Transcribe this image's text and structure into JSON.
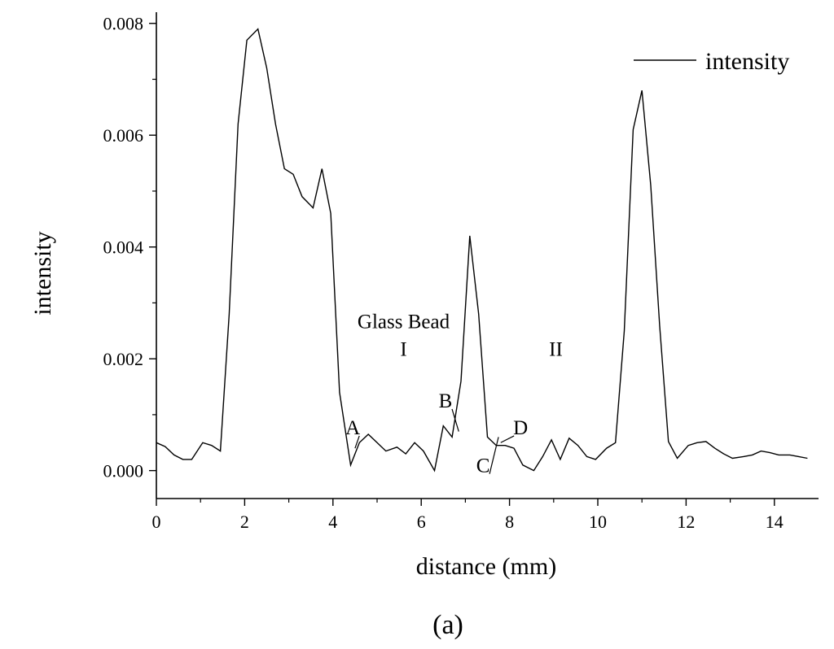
{
  "chart_data": {
    "type": "line",
    "caption": "(a)",
    "xlabel": "distance (mm)",
    "ylabel": "intensity",
    "xlim": [
      0,
      15
    ],
    "ylim": [
      -0.0005,
      0.0082
    ],
    "xticks": [
      0,
      2,
      4,
      6,
      8,
      10,
      12,
      14
    ],
    "xtick_labels": [
      "0",
      "2",
      "4",
      "6",
      "8",
      "10",
      "12",
      "14"
    ],
    "yticks": [
      0.0,
      0.002,
      0.004,
      0.006,
      0.008
    ],
    "ytick_labels": [
      "0.000",
      "0.002",
      "0.004",
      "0.006",
      "0.008"
    ],
    "grid": false,
    "legend_position": "top-right",
    "series": [
      {
        "name": "intensity",
        "color": "#000000",
        "x": [
          0,
          0.2,
          0.4,
          0.6,
          0.8,
          1.05,
          1.25,
          1.45,
          1.65,
          1.85,
          2.05,
          2.3,
          2.5,
          2.7,
          2.9,
          3.1,
          3.3,
          3.55,
          3.75,
          3.95,
          4.15,
          4.4,
          4.6,
          4.8,
          5.0,
          5.2,
          5.45,
          5.65,
          5.85,
          6.05,
          6.3,
          6.5,
          6.7,
          6.9,
          7.1,
          7.3,
          7.5,
          7.7,
          7.9,
          8.1,
          8.3,
          8.55,
          8.75,
          8.95,
          9.15,
          9.35,
          9.55,
          9.75,
          9.95,
          10.2,
          10.4,
          10.6,
          10.8,
          11.0,
          11.2,
          11.4,
          11.6,
          11.8,
          12.05,
          12.25,
          12.45,
          12.65,
          12.85,
          13.05,
          13.3,
          13.5,
          13.7,
          13.9,
          14.1,
          14.35,
          14.55,
          14.75
        ],
        "y": [
          0.0005,
          0.00043,
          0.00028,
          0.0002,
          0.0002,
          0.0005,
          0.00045,
          0.00035,
          0.0028,
          0.0062,
          0.0077,
          0.0079,
          0.0072,
          0.0062,
          0.0054,
          0.0053,
          0.0049,
          0.0047,
          0.0054,
          0.0046,
          0.0014,
          0.0001,
          0.0005,
          0.00065,
          0.0005,
          0.00035,
          0.00042,
          0.0003,
          0.0005,
          0.00035,
          0.0,
          0.0008,
          0.0006,
          0.0016,
          0.0042,
          0.0028,
          0.0006,
          0.00045,
          0.00045,
          0.0004,
          0.0001,
          0.0,
          0.00025,
          0.00055,
          0.0002,
          0.00058,
          0.00045,
          0.00025,
          0.0002,
          0.0004,
          0.0005,
          0.0025,
          0.0061,
          0.0068,
          0.0051,
          0.0026,
          0.00052,
          0.00022,
          0.00045,
          0.0005,
          0.00052,
          0.0004,
          0.0003,
          0.00022,
          0.00025,
          0.00028,
          0.00035,
          0.00032,
          0.00028,
          0.00028,
          0.00025,
          0.00022
        ]
      }
    ],
    "annotations": [
      {
        "text": "Glass Bead",
        "x": 5.6,
        "y": 0.00255
      },
      {
        "text": "I",
        "x": 5.6,
        "y": 0.00205
      },
      {
        "text": "II",
        "x": 9.05,
        "y": 0.00205
      },
      {
        "text": "A",
        "x": 4.45,
        "y": 0.00065,
        "pointer_x": 4.5,
        "pointer_y": 0.0004
      },
      {
        "text": "B",
        "x": 6.55,
        "y": 0.00113,
        "pointer_x": 6.85,
        "pointer_y": 0.0007
      },
      {
        "text": "C",
        "x": 7.4,
        "y": -3e-05,
        "pointer_x": 7.75,
        "pointer_y": 0.0006
      },
      {
        "text": "D",
        "x": 8.25,
        "y": 0.00065,
        "pointer_x": 7.8,
        "pointer_y": 0.0005
      }
    ]
  }
}
